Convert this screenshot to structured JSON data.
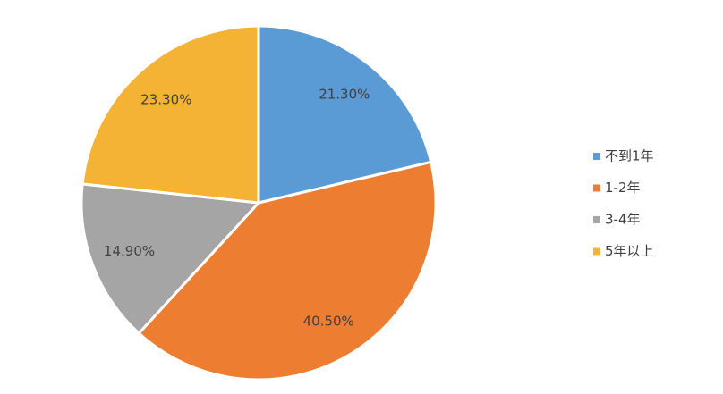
{
  "chart_data": {
    "type": "pie",
    "categories": [
      "不到1年",
      "1-2年",
      "3-4年",
      "5年以上"
    ],
    "values": [
      21.3,
      40.5,
      14.9,
      23.3
    ],
    "value_labels": [
      "21.30%",
      "40.50%",
      "14.90%",
      "23.30%"
    ],
    "colors": [
      "#5b9bd5",
      "#ed7d31",
      "#a5a5a5",
      "#f5b335"
    ],
    "legend": "right"
  }
}
